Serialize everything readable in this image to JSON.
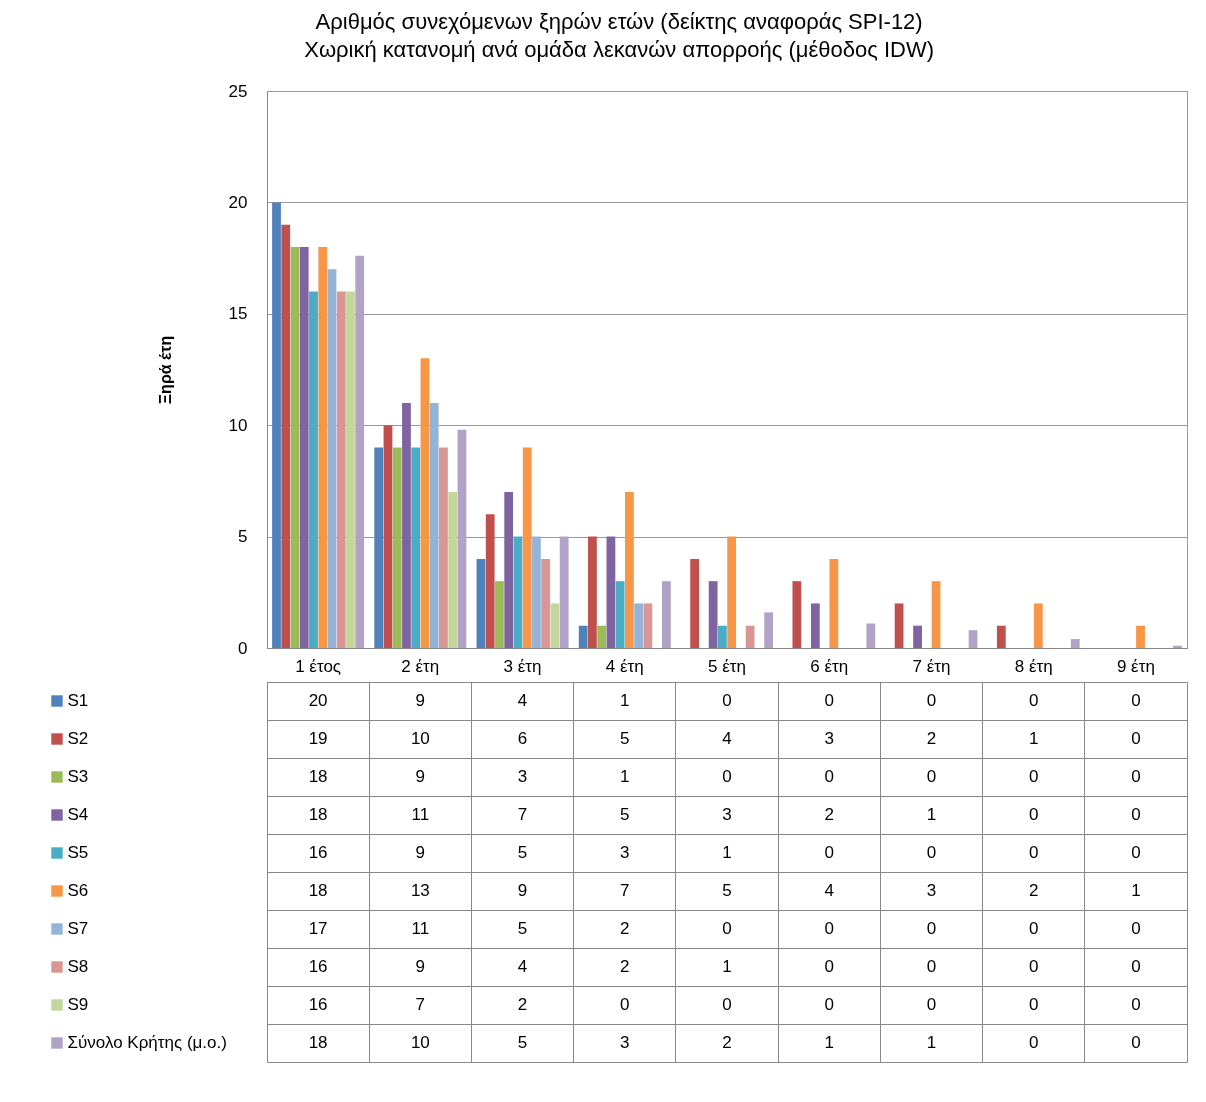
{
  "chart_data": {
    "type": "bar",
    "title": "Αριθμός συνεχόμενων ξηρών ετών (δείκτης αναφοράς SPI-12)",
    "subtitle": "Χωρική κατανομή ανά ομάδα λεκανών απορροής (μέθοδος IDW)",
    "ylabel": "Ξηρά έτη",
    "categories": [
      "1 έτος",
      "2 έτη",
      "3 έτη",
      "4 έτη",
      "5 έτη",
      "6 έτη",
      "7 έτη",
      "8 έτη",
      "9 έτη"
    ],
    "ylim": [
      0,
      25
    ],
    "yticks": [
      0,
      5,
      10,
      15,
      20,
      25
    ],
    "grid": "y",
    "legend": "bottom left",
    "series": [
      {
        "name": "S1",
        "color": "#4f81bd",
        "values": [
          20,
          9,
          4,
          1,
          0,
          0,
          0,
          0,
          0
        ],
        "value_labels": [
          "20",
          "9",
          "4",
          "1",
          "0",
          "0",
          "0",
          "0",
          "0"
        ]
      },
      {
        "name": "S2",
        "color": "#c0504d",
        "values": [
          19,
          10,
          6,
          5,
          4,
          3,
          2,
          1,
          0
        ],
        "value_labels": [
          "19",
          "10",
          "6",
          "5",
          "4",
          "3",
          "2",
          "1",
          "0"
        ]
      },
      {
        "name": "S3",
        "color": "#9bbb59",
        "values": [
          18,
          9,
          3,
          1,
          0,
          0,
          0,
          0,
          0
        ],
        "value_labels": [
          "18",
          "9",
          "3",
          "1",
          "0",
          "0",
          "0",
          "0",
          "0"
        ]
      },
      {
        "name": "S4",
        "color": "#8064a2",
        "values": [
          18,
          11,
          7,
          5,
          3,
          2,
          1,
          0,
          0
        ],
        "value_labels": [
          "18",
          "11",
          "7",
          "5",
          "3",
          "2",
          "1",
          "0",
          "0"
        ]
      },
      {
        "name": "S5",
        "color": "#4bacc6",
        "values": [
          16,
          9,
          5,
          3,
          1,
          0,
          0,
          0,
          0
        ],
        "value_labels": [
          "16",
          "9",
          "5",
          "3",
          "1",
          "0",
          "0",
          "0",
          "0"
        ]
      },
      {
        "name": "S6",
        "color": "#f79646",
        "values": [
          18,
          13,
          9,
          7,
          5,
          4,
          3,
          2,
          1
        ],
        "value_labels": [
          "18",
          "13",
          "9",
          "7",
          "5",
          "4",
          "3",
          "2",
          "1"
        ]
      },
      {
        "name": "S7",
        "color": "#95b3d7",
        "values": [
          17,
          11,
          5,
          2,
          0,
          0,
          0,
          0,
          0
        ],
        "value_labels": [
          "17",
          "11",
          "5",
          "2",
          "0",
          "0",
          "0",
          "0",
          "0"
        ]
      },
      {
        "name": "S8",
        "color": "#d99694",
        "values": [
          16,
          9,
          4,
          2,
          1,
          0,
          0,
          0,
          0
        ],
        "value_labels": [
          "16",
          "9",
          "4",
          "2",
          "1",
          "0",
          "0",
          "0",
          "0"
        ]
      },
      {
        "name": "S9",
        "color": "#c3d69b",
        "values": [
          16,
          7,
          2,
          0,
          0,
          0,
          0,
          0,
          0
        ],
        "value_labels": [
          "16",
          "7",
          "2",
          "0",
          "0",
          "0",
          "0",
          "0",
          "0"
        ]
      },
      {
        "name": "Σύνολο Κρήτης (μ.ο.)",
        "color": "#b3a2c7",
        "values": [
          17.6,
          9.8,
          5.0,
          3.0,
          1.6,
          1.1,
          0.8,
          0.4,
          0.1
        ],
        "value_labels": [
          "18",
          "10",
          "5",
          "3",
          "2",
          "1",
          "1",
          "0",
          "0"
        ]
      }
    ]
  }
}
